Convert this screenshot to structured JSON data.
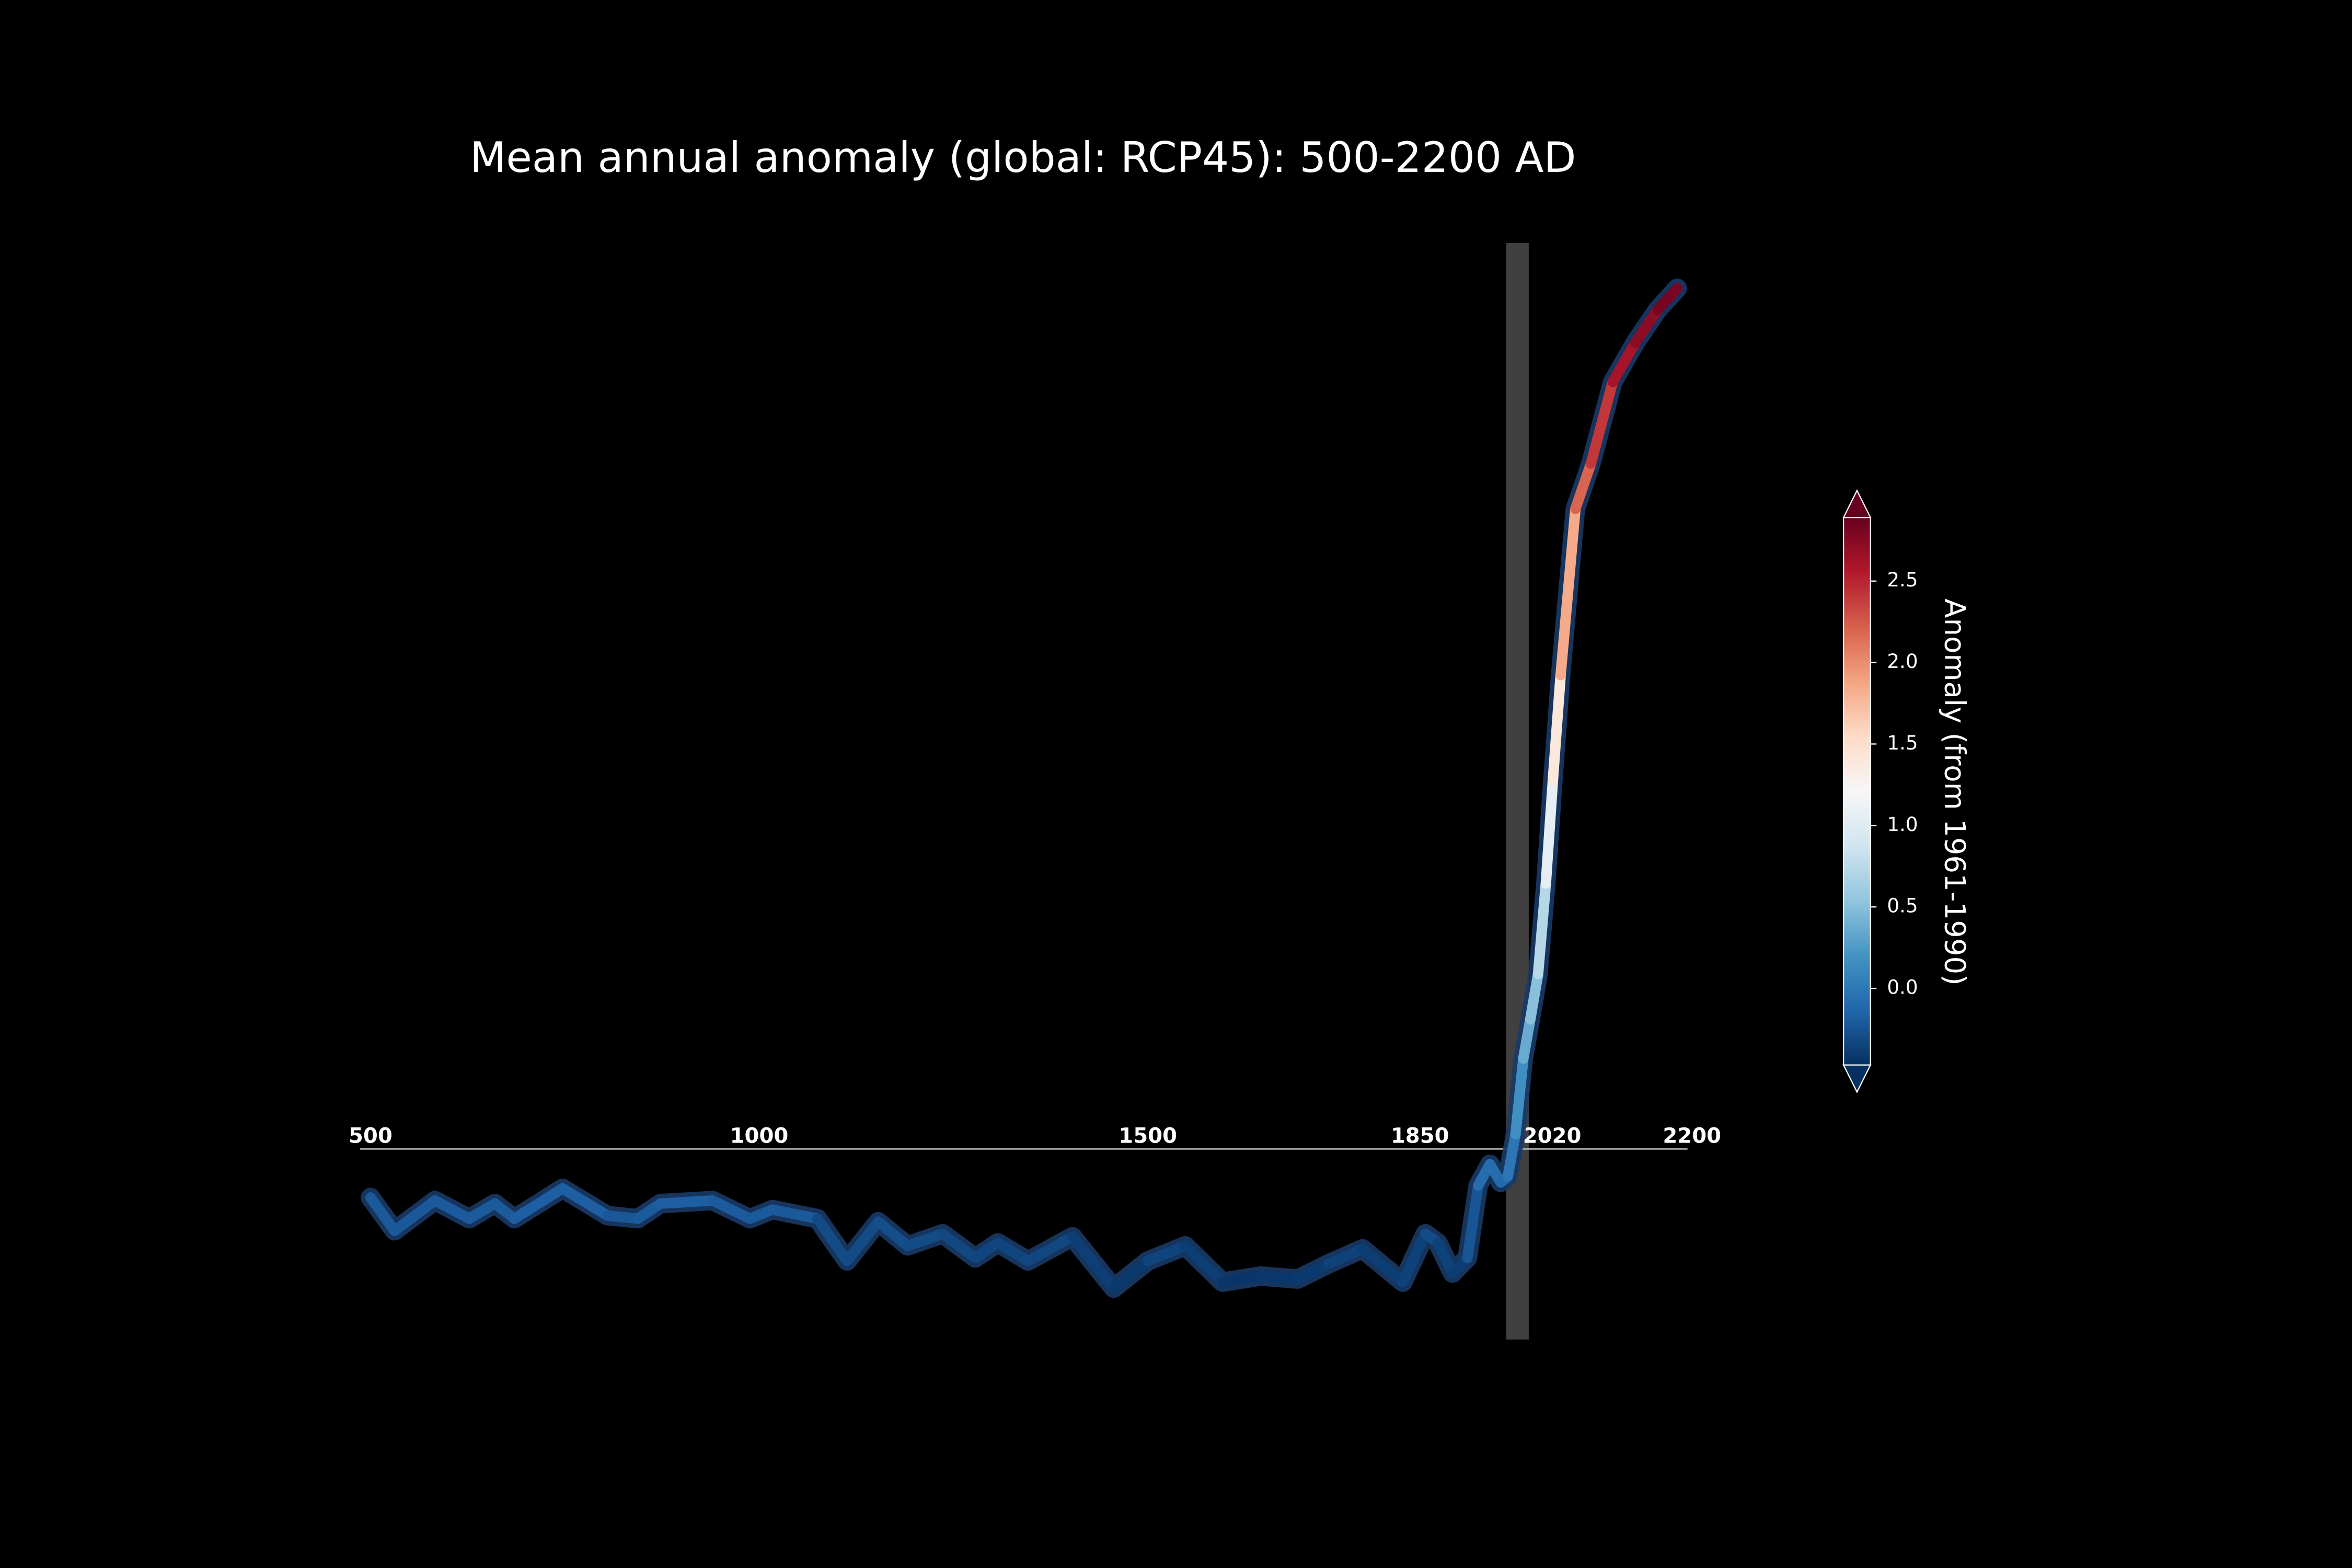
{
  "chart_data": {
    "type": "line",
    "title": "Mean annual anomaly (global: RCP45): 500-2200 AD",
    "x": [
      500,
      531,
      583,
      627,
      660,
      685,
      747,
      805,
      844,
      873,
      940,
      988,
      1017,
      1075,
      1113,
      1153,
      1191,
      1236,
      1278,
      1307,
      1346,
      1403,
      1456,
      1500,
      1548,
      1596,
      1645,
      1693,
      1732,
      1776,
      1828,
      1857,
      1873,
      1892,
      1911,
      1925,
      1940,
      1954,
      1963,
      1973,
      1983,
      1992,
      2002,
      2012,
      2021,
      2031,
      2050,
      2070,
      2098,
      2127,
      2156,
      2181
    ],
    "series": [
      {
        "values": [
          -0.16,
          -0.27,
          -0.17,
          -0.23,
          -0.18,
          -0.23,
          -0.13,
          -0.22,
          -0.23,
          -0.18,
          -0.17,
          -0.23,
          -0.2,
          -0.23,
          -0.37,
          -0.24,
          -0.32,
          -0.28,
          -0.36,
          -0.31,
          -0.37,
          -0.29,
          -0.46,
          -0.37,
          -0.32,
          -0.44,
          -0.42,
          -0.43,
          -0.38,
          -0.33,
          -0.44,
          -0.28,
          -0.31,
          -0.41,
          -0.36,
          -0.12,
          -0.05,
          -0.11,
          -0.09,
          0.05,
          0.3,
          0.43,
          0.58,
          0.88,
          1.22,
          1.57,
          2.12,
          2.27,
          2.54,
          2.67,
          2.78,
          2.85
        ]
      }
    ],
    "xlim": [
      500,
      2200
    ],
    "xticks": [
      500,
      1000,
      1500,
      1850,
      2020,
      2200
    ],
    "ylim": [
      -0.63,
      3.0
    ],
    "reference_band": [
      1961,
      1990
    ],
    "colormap": [
      "#053061",
      "#2166ac",
      "#4393c3",
      "#92c5de",
      "#d1e5f0",
      "#f7f7f7",
      "#fddbc7",
      "#f4a582",
      "#d6604d",
      "#b2182b",
      "#67001f"
    ],
    "colorbar": {
      "label": "Anomaly (from 1961-1990)",
      "lim": [
        -0.47,
        2.89
      ],
      "ticks": [
        {
          "value": 0.0,
          "label": "0.0"
        },
        0.5,
        {
          "value": 1.0,
          "label": "1.0"
        },
        1.5,
        {
          "value": 2.0,
          "label": "2.0"
        },
        2.5
      ]
    }
  }
}
